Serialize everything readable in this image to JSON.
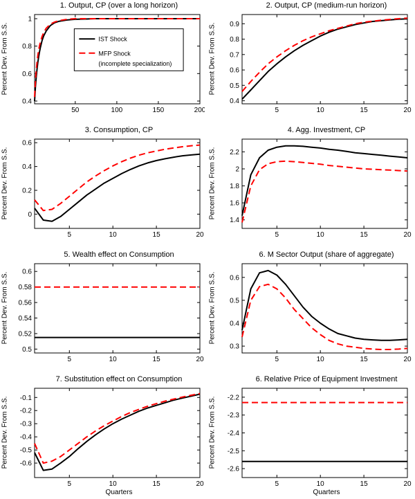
{
  "figure": {
    "ylabel_shared": "Percent Dev. From S.S.",
    "colors": {
      "ist": "#000000",
      "mfp": "#ff0000",
      "background": "#ffffff",
      "axis": "#000000"
    }
  },
  "legend": {
    "entries": [
      {
        "label": "IST Shock",
        "color": "#000000",
        "style": "solid"
      },
      {
        "label": "MFP Shock",
        "label2": "(incomplete specialization)",
        "color": "#ff0000",
        "style": "dashed"
      }
    ]
  },
  "chart_data": [
    {
      "type": "line",
      "title": "1. Output, CP (over a long horizon)",
      "xlabel": "",
      "ylabel": "Percent Dev. From S.S.",
      "xlim": [
        1,
        200
      ],
      "ylim": [
        0.38,
        1.03
      ],
      "xticks": [
        50,
        100,
        150,
        200
      ],
      "yticks": [
        0.4,
        0.6,
        0.8,
        1
      ],
      "show_legend": true,
      "series": [
        {
          "name": "IST Shock",
          "color": "#000000",
          "dash": "solid",
          "x": [
            1,
            2,
            3,
            4,
            5,
            6,
            7,
            8,
            10,
            12,
            15,
            20,
            25,
            30,
            40,
            50,
            75,
            100,
            150,
            200
          ],
          "y": [
            0.4,
            0.5,
            0.575,
            0.635,
            0.685,
            0.725,
            0.76,
            0.79,
            0.84,
            0.875,
            0.91,
            0.95,
            0.97,
            0.98,
            0.99,
            0.995,
            1.0,
            1.0,
            1.0,
            1.0
          ]
        },
        {
          "name": "MFP Shock (incomplete specialization)",
          "color": "#ff0000",
          "dash": "dashed",
          "x": [
            1,
            2,
            3,
            4,
            5,
            6,
            7,
            8,
            10,
            12,
            15,
            20,
            25,
            30,
            40,
            50,
            75,
            100,
            150,
            200
          ],
          "y": [
            0.43,
            0.545,
            0.625,
            0.685,
            0.735,
            0.775,
            0.805,
            0.83,
            0.87,
            0.9,
            0.93,
            0.96,
            0.975,
            0.985,
            0.995,
            1.0,
            1.0,
            1.0,
            1.0,
            1.0
          ]
        }
      ]
    },
    {
      "type": "line",
      "title": "2. Output, CP (medium-run horizon)",
      "xlabel": "",
      "ylabel": "Percent Dev. From S.S.",
      "xlim": [
        1,
        20
      ],
      "ylim": [
        0.38,
        0.96
      ],
      "xticks": [
        5,
        10,
        15,
        20
      ],
      "yticks": [
        0.4,
        0.5,
        0.6,
        0.7,
        0.8,
        0.9
      ],
      "show_legend": false,
      "series": [
        {
          "name": "IST Shock",
          "color": "#000000",
          "dash": "solid",
          "x": [
            1,
            2,
            3,
            4,
            5,
            6,
            7,
            8,
            9,
            10,
            11,
            12,
            13,
            14,
            15,
            16,
            17,
            18,
            19,
            20
          ],
          "y": [
            0.41,
            0.47,
            0.53,
            0.59,
            0.64,
            0.685,
            0.725,
            0.76,
            0.79,
            0.82,
            0.845,
            0.865,
            0.88,
            0.895,
            0.905,
            0.915,
            0.92,
            0.925,
            0.93,
            0.932
          ]
        },
        {
          "name": "MFP Shock (incomplete specialization)",
          "color": "#ff0000",
          "dash": "dashed",
          "x": [
            1,
            2,
            3,
            4,
            5,
            6,
            7,
            8,
            9,
            10,
            11,
            12,
            13,
            14,
            15,
            16,
            17,
            18,
            19,
            20
          ],
          "y": [
            0.46,
            0.525,
            0.585,
            0.64,
            0.685,
            0.725,
            0.76,
            0.79,
            0.815,
            0.835,
            0.855,
            0.87,
            0.885,
            0.9,
            0.91,
            0.917,
            0.923,
            0.928,
            0.933,
            0.937
          ]
        }
      ]
    },
    {
      "type": "line",
      "title": "3. Consumption, CP",
      "xlabel": "",
      "ylabel": "Percent Dev. From S.S.",
      "xlim": [
        1,
        20
      ],
      "ylim": [
        -0.12,
        0.63
      ],
      "xticks": [
        5,
        10,
        15,
        20
      ],
      "yticks": [
        0,
        0.2,
        0.4,
        0.6
      ],
      "show_legend": false,
      "series": [
        {
          "name": "IST Shock",
          "color": "#000000",
          "dash": "solid",
          "x": [
            1,
            2,
            3,
            4,
            5,
            6,
            7,
            8,
            9,
            10,
            11,
            12,
            13,
            14,
            15,
            16,
            17,
            18,
            19,
            20
          ],
          "y": [
            0.05,
            -0.05,
            -0.06,
            -0.02,
            0.04,
            0.1,
            0.16,
            0.21,
            0.26,
            0.3,
            0.34,
            0.375,
            0.405,
            0.43,
            0.45,
            0.465,
            0.478,
            0.49,
            0.497,
            0.503
          ]
        },
        {
          "name": "MFP Shock (incomplete specialization)",
          "color": "#ff0000",
          "dash": "dashed",
          "x": [
            1,
            2,
            3,
            4,
            5,
            6,
            7,
            8,
            9,
            10,
            11,
            12,
            13,
            14,
            15,
            16,
            17,
            18,
            19,
            20
          ],
          "y": [
            0.12,
            0.03,
            0.04,
            0.09,
            0.15,
            0.21,
            0.27,
            0.32,
            0.365,
            0.405,
            0.44,
            0.47,
            0.495,
            0.515,
            0.53,
            0.545,
            0.556,
            0.566,
            0.574,
            0.58
          ]
        }
      ]
    },
    {
      "type": "line",
      "title": "4. Agg. Investment, CP",
      "xlabel": "",
      "ylabel": "Percent Dev. From S.S.",
      "xlim": [
        1,
        20
      ],
      "ylim": [
        1.3,
        2.35
      ],
      "xticks": [
        5,
        10,
        15,
        20
      ],
      "yticks": [
        1.4,
        1.6,
        1.8,
        2,
        2.2
      ],
      "show_legend": false,
      "series": [
        {
          "name": "IST Shock",
          "color": "#000000",
          "dash": "solid",
          "x": [
            1,
            2,
            3,
            4,
            5,
            6,
            7,
            8,
            9,
            10,
            11,
            12,
            13,
            14,
            15,
            16,
            17,
            18,
            19,
            20
          ],
          "y": [
            1.45,
            1.93,
            2.13,
            2.22,
            2.255,
            2.27,
            2.27,
            2.265,
            2.255,
            2.245,
            2.23,
            2.22,
            2.205,
            2.19,
            2.18,
            2.17,
            2.16,
            2.15,
            2.14,
            2.13
          ]
        },
        {
          "name": "MFP Shock (incomplete specialization)",
          "color": "#ff0000",
          "dash": "dashed",
          "x": [
            1,
            2,
            3,
            4,
            5,
            6,
            7,
            8,
            9,
            10,
            11,
            12,
            13,
            14,
            15,
            16,
            17,
            18,
            19,
            20
          ],
          "y": [
            1.37,
            1.8,
            1.99,
            2.06,
            2.085,
            2.09,
            2.085,
            2.075,
            2.065,
            2.055,
            2.04,
            2.03,
            2.02,
            2.01,
            2.0,
            1.995,
            1.99,
            1.985,
            1.98,
            1.975
          ]
        }
      ]
    },
    {
      "type": "line",
      "title": "5. Wealth effect on Consumption",
      "xlabel": "",
      "ylabel": "Percent Dev. From S.S.",
      "xlim": [
        1,
        20
      ],
      "ylim": [
        0.495,
        0.61
      ],
      "xticks": [
        5,
        10,
        15,
        20
      ],
      "yticks": [
        0.5,
        0.52,
        0.54,
        0.56,
        0.58,
        0.6
      ],
      "show_legend": false,
      "series": [
        {
          "name": "IST Shock",
          "color": "#000000",
          "dash": "solid",
          "x": [
            1,
            20
          ],
          "y": [
            0.515,
            0.515
          ]
        },
        {
          "name": "MFP Shock (incomplete specialization)",
          "color": "#ff0000",
          "dash": "dashed",
          "x": [
            1,
            20
          ],
          "y": [
            0.58,
            0.58
          ]
        }
      ]
    },
    {
      "type": "line",
      "title": "6. M Sector Output (share of aggregate)",
      "xlabel": "",
      "ylabel": "Percent Dev. From S.S.",
      "xlim": [
        1,
        20
      ],
      "ylim": [
        0.27,
        0.66
      ],
      "xticks": [
        5,
        10,
        15,
        20
      ],
      "yticks": [
        0.3,
        0.4,
        0.5,
        0.6
      ],
      "show_legend": false,
      "series": [
        {
          "name": "IST Shock",
          "color": "#000000",
          "dash": "solid",
          "x": [
            1,
            2,
            3,
            4,
            5,
            6,
            7,
            8,
            9,
            10,
            11,
            12,
            13,
            14,
            15,
            16,
            17,
            18,
            19,
            20
          ],
          "y": [
            0.37,
            0.55,
            0.62,
            0.63,
            0.61,
            0.57,
            0.52,
            0.47,
            0.43,
            0.4,
            0.375,
            0.355,
            0.345,
            0.335,
            0.33,
            0.327,
            0.325,
            0.325,
            0.327,
            0.33
          ]
        },
        {
          "name": "MFP Shock (incomplete specialization)",
          "color": "#ff0000",
          "dash": "dashed",
          "x": [
            1,
            2,
            3,
            4,
            5,
            6,
            7,
            8,
            9,
            10,
            11,
            12,
            13,
            14,
            15,
            16,
            17,
            18,
            19,
            20
          ],
          "y": [
            0.34,
            0.5,
            0.56,
            0.57,
            0.55,
            0.51,
            0.46,
            0.42,
            0.38,
            0.35,
            0.325,
            0.31,
            0.3,
            0.295,
            0.29,
            0.287,
            0.285,
            0.285,
            0.287,
            0.29
          ]
        }
      ]
    },
    {
      "type": "line",
      "title": "7. Substitution effect on Consumption",
      "xlabel": "Quarters",
      "ylabel": "Percent Dev. From S.S.",
      "xlim": [
        1,
        20
      ],
      "ylim": [
        -0.71,
        -0.03
      ],
      "xticks": [
        5,
        10,
        15,
        20
      ],
      "yticks": [
        -0.6,
        -0.5,
        -0.4,
        -0.3,
        -0.2,
        -0.1
      ],
      "show_legend": false,
      "series": [
        {
          "name": "IST Shock",
          "color": "#000000",
          "dash": "solid",
          "x": [
            1,
            2,
            3,
            4,
            5,
            6,
            7,
            8,
            9,
            10,
            11,
            12,
            13,
            14,
            15,
            16,
            17,
            18,
            19,
            20
          ],
          "y": [
            -0.52,
            -0.655,
            -0.645,
            -0.6,
            -0.55,
            -0.49,
            -0.435,
            -0.385,
            -0.34,
            -0.3,
            -0.265,
            -0.235,
            -0.205,
            -0.18,
            -0.16,
            -0.14,
            -0.12,
            -0.105,
            -0.09,
            -0.075
          ]
        },
        {
          "name": "MFP Shock (incomplete specialization)",
          "color": "#ff0000",
          "dash": "dashed",
          "x": [
            1,
            2,
            3,
            4,
            5,
            6,
            7,
            8,
            9,
            10,
            11,
            12,
            13,
            14,
            15,
            16,
            17,
            18,
            19,
            20
          ],
          "y": [
            -0.45,
            -0.6,
            -0.585,
            -0.55,
            -0.5,
            -0.45,
            -0.4,
            -0.355,
            -0.315,
            -0.28,
            -0.245,
            -0.215,
            -0.19,
            -0.167,
            -0.147,
            -0.128,
            -0.112,
            -0.097,
            -0.083,
            -0.07
          ]
        }
      ]
    },
    {
      "type": "line",
      "title": "6. Relative Price of Equipment Investment",
      "xlabel": "Quarters",
      "ylabel": "Percent Dev. From S.S.",
      "xlim": [
        1,
        20
      ],
      "ylim": [
        -2.65,
        -2.15
      ],
      "xticks": [
        5,
        10,
        15,
        20
      ],
      "yticks": [
        -2.6,
        -2.5,
        -2.4,
        -2.3,
        -2.2
      ],
      "show_legend": false,
      "series": [
        {
          "name": "IST Shock",
          "color": "#000000",
          "dash": "solid",
          "x": [
            1,
            20
          ],
          "y": [
            -2.56,
            -2.56
          ]
        },
        {
          "name": "MFP Shock (incomplete specialization)",
          "color": "#ff0000",
          "dash": "dashed",
          "x": [
            1,
            20
          ],
          "y": [
            -2.23,
            -2.23
          ]
        }
      ]
    }
  ]
}
